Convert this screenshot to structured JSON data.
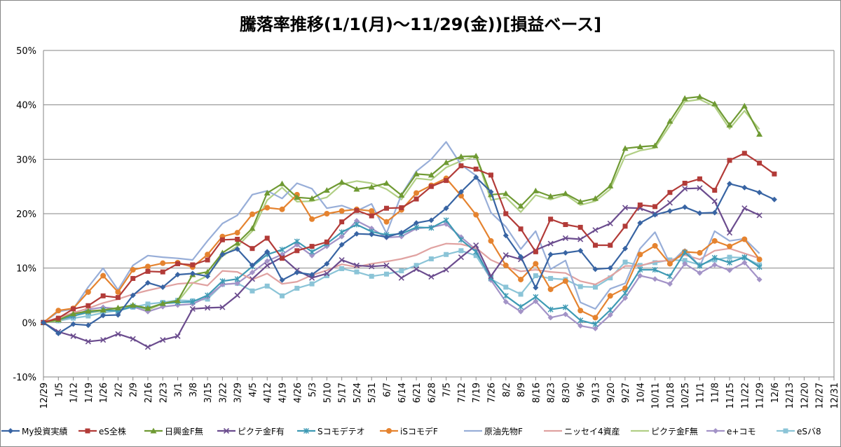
{
  "chart_data": {
    "type": "line",
    "title": "騰落率推移(1/1(月)～11/29(金))[損益ベース]",
    "xlabel": "",
    "ylabel": "",
    "ylim": [
      -10,
      50
    ],
    "y_ticks": [
      -10,
      0,
      10,
      20,
      30,
      40,
      50
    ],
    "y_tick_labels": [
      "-10%",
      "0%",
      "10%",
      "20%",
      "30%",
      "40%",
      "50%"
    ],
    "x_tick_labels": [
      "12/29",
      "1/5",
      "1/12",
      "1/19",
      "1/26",
      "2/2",
      "2/9",
      "2/16",
      "2/23",
      "3/1",
      "3/8",
      "3/15",
      "3/22",
      "3/29",
      "4/5",
      "4/12",
      "4/19",
      "4/26",
      "5/3",
      "5/10",
      "5/17",
      "5/24",
      "5/31",
      "6/7",
      "6/14",
      "6/21",
      "6/28",
      "7/5",
      "7/12",
      "7/19",
      "7/26",
      "8/2",
      "8/9",
      "8/16",
      "8/23",
      "8/30",
      "9/6",
      "9/13",
      "9/20",
      "9/27",
      "10/4",
      "10/11",
      "10/18",
      "10/25",
      "11/1",
      "11/8",
      "11/15",
      "11/22",
      "11/29",
      "12/6",
      "12/13",
      "12/20",
      "12/27",
      "12/31"
    ],
    "grid": "horizontal",
    "legend": "bottom",
    "series": [
      {
        "name": "My投資実績",
        "color": "#3864a3",
        "marker": "diamond",
        "values": [
          0,
          -2,
          -0.3,
          -0.5,
          1.3,
          1.4,
          5,
          7.3,
          6.5,
          8.8,
          9,
          8.5,
          12.5,
          13.5,
          10.5,
          13,
          7.8,
          9.2,
          8.8,
          10.8,
          14.3,
          16.3,
          16.2,
          15.7,
          16.5,
          18.3,
          18.8,
          21,
          24,
          26.7,
          24,
          16,
          12.1,
          6.4,
          12.5,
          12.8,
          13.2,
          9.8,
          10,
          13.6,
          18.3,
          19.8,
          20.5,
          21.2,
          20.1,
          20.2,
          25.5,
          24.8,
          23.9,
          22.6
        ]
      },
      {
        "name": "eS全株",
        "color": "#b23b38",
        "marker": "square",
        "values": [
          0,
          0.8,
          2.5,
          3.1,
          4.9,
          4.6,
          8.1,
          9.4,
          9.3,
          10.8,
          10.6,
          11.5,
          15.2,
          15.3,
          13.6,
          15.5,
          11.8,
          13.2,
          14,
          14.8,
          18.5,
          20.6,
          19.6,
          21,
          21.1,
          22.7,
          25,
          26.1,
          28.8,
          28.2,
          27.1,
          20,
          17.2,
          13,
          19,
          18,
          17.5,
          14.2,
          14.2,
          17.7,
          21.6,
          21.3,
          23.9,
          25.6,
          26.4,
          24.3,
          29.8,
          31.1,
          29.3,
          27.3
        ]
      },
      {
        "name": "日興金F無",
        "color": "#6f9a33",
        "marker": "triangle",
        "values": [
          0,
          0.5,
          1.6,
          2.1,
          2.3,
          2.7,
          3.2,
          2.6,
          3.5,
          4,
          8.8,
          9.3,
          12.8,
          14.6,
          17.3,
          23.8,
          25.5,
          23,
          22.8,
          24.3,
          25.8,
          24.5,
          24.9,
          25.6,
          23.4,
          27.3,
          27.1,
          29.4,
          30.5,
          30.6,
          23.5,
          23.7,
          21.4,
          24.2,
          23.2,
          23.7,
          22.2,
          22.8,
          25.1,
          32,
          32.3,
          32.5,
          37,
          41.2,
          41.5,
          40.2,
          36.3,
          39.8,
          34.6
        ]
      },
      {
        "name": "ピクテ金F有",
        "color": "#6b4c8e",
        "marker": "x",
        "values": [
          0,
          -1.7,
          -2.5,
          -3.5,
          -3.2,
          -2.1,
          -3,
          -4.5,
          -3.2,
          -2.5,
          2.5,
          2.7,
          2.8,
          5,
          8,
          10.5,
          12,
          9.6,
          8.2,
          9,
          11.5,
          10.5,
          10.3,
          10.5,
          8.2,
          9.8,
          8.4,
          9.7,
          12,
          14.2,
          8.5,
          12.4,
          11.6,
          13.3,
          14.5,
          15.5,
          15.3,
          17,
          18.2,
          21.1,
          21,
          20,
          22,
          24.6,
          24.7,
          22.3,
          16.5,
          21,
          19.7
        ]
      },
      {
        "name": "Sコモデテオ",
        "color": "#3e9ab4",
        "marker": "asterisk",
        "values": [
          0,
          0.5,
          1.2,
          1.9,
          2.3,
          2.1,
          3,
          2.6,
          3.5,
          3.7,
          3.8,
          5,
          7.6,
          8,
          10.3,
          12.5,
          13.4,
          14.9,
          13,
          14.5,
          16.6,
          18,
          16.7,
          16.1,
          16.3,
          17.5,
          17.4,
          18.8,
          15.2,
          13,
          8.2,
          4.9,
          2.9,
          4.7,
          2.4,
          2.8,
          0.4,
          -0.3,
          2.3,
          5.4,
          9.7,
          9.7,
          8.5,
          12.9,
          10.4,
          11.9,
          11,
          12,
          10.2
        ]
      },
      {
        "name": "iSコモデF",
        "color": "#e5832f",
        "marker": "circle",
        "values": [
          0,
          2.2,
          2.6,
          5.6,
          8.6,
          5.6,
          9.7,
          10.3,
          10.9,
          11,
          10.2,
          12.5,
          15.8,
          16.5,
          19.9,
          21.1,
          20.8,
          23.5,
          19,
          20,
          20.5,
          20.8,
          20.5,
          18.5,
          20.7,
          23.8,
          25.2,
          26.5,
          23.3,
          19.8,
          15,
          10.5,
          7.9,
          10.8,
          6.1,
          7.6,
          2.2,
          0.9,
          4.9,
          6.3,
          12.5,
          14.1,
          10.8,
          13,
          12.8,
          15,
          14,
          15.3,
          11.6
        ]
      },
      {
        "name": "原油先物F",
        "color": "#98aed8",
        "marker": "none",
        "values": [
          0,
          2,
          2.5,
          6.5,
          10,
          6,
          10.5,
          12.3,
          12,
          11.8,
          11.5,
          15,
          18.2,
          19.7,
          23.5,
          24.2,
          22.8,
          25.6,
          24.6,
          21,
          21.5,
          20.5,
          21.8,
          16.4,
          23.5,
          27.8,
          30,
          33.2,
          29,
          27,
          20.2,
          17.6,
          13.5,
          16.8,
          9.8,
          11.4,
          3.7,
          2.5,
          6.2,
          7.2,
          13.6,
          16.6,
          10.8,
          13.5,
          10.3,
          16.8,
          15,
          15.4,
          12.7
        ]
      },
      {
        "name": "ニッセイ4資産",
        "color": "#e0a2a1",
        "marker": "none",
        "values": [
          0,
          0.9,
          1.8,
          2.6,
          3.6,
          4.3,
          5.2,
          5.9,
          6.5,
          7.1,
          7.3,
          6.8,
          9.5,
          9.3,
          7.9,
          9,
          7.1,
          7.5,
          8.7,
          9.6,
          10.7,
          10.2,
          10.8,
          11.2,
          11.7,
          12.4,
          13.7,
          14.5,
          14.4,
          13.7,
          11.5,
          10.3,
          9.4,
          9.7,
          9.3,
          9.1,
          7.6,
          7,
          8.5,
          10.4,
          10.4,
          11.2,
          11.4,
          12.4,
          11.6,
          13.2,
          13.6,
          12.7,
          11.8
        ]
      },
      {
        "name": "ピクテ金F無",
        "color": "#b1cf85",
        "marker": "none",
        "values": [
          0,
          0.3,
          1.3,
          1.8,
          2.1,
          2.5,
          3.2,
          2.3,
          3.5,
          3.8,
          7.2,
          8.6,
          12.2,
          14,
          16.8,
          22.5,
          24.8,
          22.2,
          22.3,
          23,
          25.4,
          26,
          25.6,
          24.5,
          22.6,
          26.5,
          26.2,
          28.5,
          29.7,
          30.6,
          22.5,
          23,
          20.3,
          23.4,
          22.6,
          23.5,
          21.6,
          22.3,
          24.5,
          30.6,
          31.6,
          32.1,
          36.2,
          40.6,
          41,
          39.7,
          35.6,
          38.9,
          35.5
        ]
      },
      {
        "name": "e+コモ",
        "color": "#a393c7",
        "marker": "diamond",
        "values": [
          0,
          0.4,
          1.1,
          2.4,
          2.8,
          2.5,
          2.9,
          2,
          2.9,
          3.2,
          3.4,
          4.7,
          7,
          7.2,
          9.2,
          11.3,
          12.5,
          14.3,
          12.3,
          14,
          15.8,
          18.7,
          17.3,
          15.6,
          15.8,
          17.3,
          17.5,
          18.1,
          15.7,
          13.4,
          7.8,
          3.8,
          2,
          3.9,
          0.9,
          1.5,
          -0.6,
          -1.1,
          1.4,
          4.5,
          8.6,
          8,
          7.1,
          10.8,
          9.1,
          10.6,
          9.6,
          11,
          7.9
        ]
      },
      {
        "name": "eSバ8",
        "color": "#8bc4d7",
        "marker": "square",
        "values": [
          0,
          0.3,
          0.8,
          1.2,
          1.8,
          2.2,
          2.8,
          3.4,
          3.7,
          4.1,
          4,
          4.3,
          7,
          7.2,
          5.8,
          6.7,
          4.9,
          6.3,
          7.1,
          8.6,
          9.9,
          9.3,
          8.5,
          8.9,
          9.5,
          10.5,
          11.7,
          12.5,
          13.2,
          12.3,
          8,
          6.5,
          5.2,
          8.6,
          8.1,
          7.9,
          6.6,
          6.5,
          8.2,
          11.1,
          10.5,
          11,
          11.5,
          11.4,
          10.6,
          11.5,
          12,
          11.9,
          10.6
        ]
      }
    ]
  }
}
